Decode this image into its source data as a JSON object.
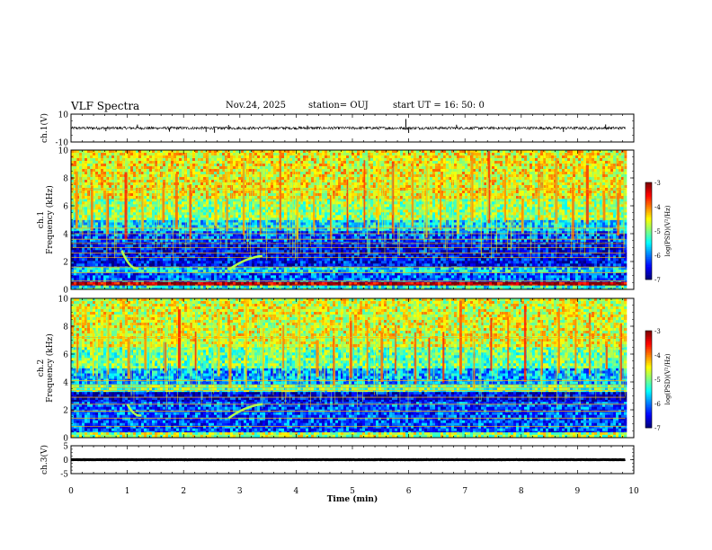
{
  "header": {
    "title": "VLF Spectra",
    "date": "Nov.24, 2025",
    "station": "station= OUJ",
    "start_ut": "start  UT =   16: 50: 0"
  },
  "chart_data": [
    {
      "type": "line",
      "name": "ch1_waveform",
      "ylabel": "ch.1(V)",
      "ylim": [
        -10,
        10
      ],
      "yticks": [
        "10",
        "-10"
      ],
      "xlim": [
        0,
        10
      ],
      "x_data_end": 9.85,
      "baseline": 0,
      "noise_amplitude": 1.0,
      "spikes": [
        {
          "x": 0.62,
          "y": -2.2
        },
        {
          "x": 1.18,
          "y": 2.5
        },
        {
          "x": 1.75,
          "y": -2.6
        },
        {
          "x": 2.4,
          "y": -2.8
        },
        {
          "x": 2.55,
          "y": -3.4
        },
        {
          "x": 2.8,
          "y": 2.2
        },
        {
          "x": 4.2,
          "y": 1.8
        },
        {
          "x": 5.95,
          "y": 6.5
        },
        {
          "x": 6.0,
          "y": -3.5
        },
        {
          "x": 6.85,
          "y": 2.4
        },
        {
          "x": 7.9,
          "y": -2.0
        },
        {
          "x": 8.75,
          "y": -2.8
        },
        {
          "x": 9.5,
          "y": 2.6
        }
      ]
    },
    {
      "type": "heatmap",
      "name": "ch1_spectrogram",
      "ylabel": "ch.1\nFrequency (kHz)",
      "ylim": [
        0,
        10
      ],
      "yticks": [
        "0",
        "2",
        "4",
        "6",
        "8",
        "10"
      ],
      "xlim": [
        0,
        10
      ],
      "x_data_end": 9.85,
      "colorbar": {
        "label": "log(PSD)(V²/Hz)",
        "range": [
          -7,
          -3
        ],
        "ticks": [
          "-3",
          "-4",
          "-5",
          "-6",
          "-7"
        ]
      },
      "bands": [
        {
          "from": 0.0,
          "to": 0.3,
          "level": -5.4
        },
        {
          "from": 0.3,
          "to": 0.55,
          "level": -3.2
        },
        {
          "from": 0.55,
          "to": 1.2,
          "level": -6.2
        },
        {
          "from": 1.2,
          "to": 1.6,
          "level": -5.6
        },
        {
          "from": 1.6,
          "to": 3.4,
          "level": -6.5
        },
        {
          "from": 3.4,
          "to": 4.2,
          "level": -6.2
        },
        {
          "from": 4.2,
          "to": 5.0,
          "level": -5.6
        },
        {
          "from": 5.0,
          "to": 6.5,
          "level": -4.9
        },
        {
          "from": 6.5,
          "to": 10.0,
          "level": -4.5
        }
      ],
      "lines_khz": [
        0.6,
        1.2,
        1.6,
        2.3,
        2.6,
        3.0,
        3.3,
        3.6,
        4.0,
        4.4,
        7.2
      ],
      "bursts": [
        0.08,
        0.35,
        0.62,
        0.95,
        1.25,
        1.62,
        1.85,
        2.1,
        2.55,
        2.75,
        3.05,
        3.35,
        3.7,
        4.0,
        4.3,
        4.6,
        4.9,
        5.2,
        5.45,
        5.7,
        6.05,
        6.3,
        6.55,
        6.85,
        7.1,
        7.4,
        7.7,
        8.0,
        8.3,
        8.6,
        8.9,
        9.15,
        9.45,
        9.7
      ],
      "whistlers": [
        {
          "x_start": 0.9,
          "x_end": 1.2,
          "f_start": 2.8,
          "f_end": 1.5
        },
        {
          "x_start": 2.8,
          "x_end": 3.4,
          "f_start": 1.4,
          "f_end": 2.4
        }
      ]
    },
    {
      "type": "heatmap",
      "name": "ch2_spectrogram",
      "ylabel": "ch.2\nFrequency (kHz)",
      "ylim": [
        0,
        10
      ],
      "yticks": [
        "0",
        "2",
        "4",
        "6",
        "8",
        "10"
      ],
      "xlim": [
        0,
        10
      ],
      "x_data_end": 9.85,
      "colorbar": {
        "label": "log(PSD)(V²/Hz)",
        "range": [
          -7,
          -3
        ],
        "ticks": [
          "-3",
          "-4",
          "-5",
          "-6",
          "-7"
        ]
      },
      "bands": [
        {
          "from": 0.0,
          "to": 0.4,
          "level": -4.8
        },
        {
          "from": 0.4,
          "to": 2.6,
          "level": -6.2
        },
        {
          "from": 2.6,
          "to": 3.3,
          "level": -6.6
        },
        {
          "from": 3.3,
          "to": 3.8,
          "level": -5.2
        },
        {
          "from": 3.8,
          "to": 5.0,
          "level": -5.8
        },
        {
          "from": 5.0,
          "to": 6.5,
          "level": -5.1
        },
        {
          "from": 6.5,
          "to": 10.0,
          "level": -4.6
        }
      ],
      "lines_khz": [
        0.8,
        1.4,
        1.9,
        2.4,
        2.9,
        3.4,
        3.6,
        3.8,
        4.1,
        7.2
      ],
      "bursts": [
        0.1,
        0.38,
        0.65,
        1.0,
        1.3,
        1.65,
        1.9,
        2.2,
        2.6,
        2.8,
        3.1,
        3.4,
        3.75,
        4.05,
        4.35,
        4.65,
        4.95,
        5.25,
        5.5,
        5.75,
        6.1,
        6.35,
        6.6,
        6.9,
        7.15,
        7.45,
        7.75,
        8.05,
        8.35,
        8.65,
        8.95,
        9.2,
        9.5,
        9.75
      ],
      "whistlers": [
        {
          "x_start": 1.0,
          "x_end": 1.25,
          "f_start": 2.4,
          "f_end": 1.6
        },
        {
          "x_start": 2.8,
          "x_end": 3.4,
          "f_start": 1.4,
          "f_end": 2.4
        }
      ]
    },
    {
      "type": "line",
      "name": "ch3_waveform",
      "ylabel": "ch.3(V)",
      "ylim": [
        -5,
        5
      ],
      "yticks": [
        "5",
        "0",
        "-5"
      ],
      "xlim": [
        0,
        10
      ],
      "x_data_end": 9.85,
      "baseline": 0,
      "noise_amplitude": 0.05
    }
  ],
  "x_axis": {
    "label": "Time  (min)",
    "ticks": [
      "0",
      "1",
      "2",
      "3",
      "4",
      "5",
      "6",
      "7",
      "8",
      "9",
      "10"
    ]
  }
}
